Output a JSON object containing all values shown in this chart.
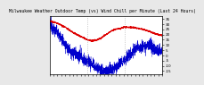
{
  "title": "Milwaukee Weather Outdoor Temp (vs) Wind Chill per Minute (Last 24 Hours)",
  "bg_color": "#e8e8e8",
  "plot_bg_color": "#ffffff",
  "text_color": "#000000",
  "blue_line_color": "#0000cc",
  "red_line_color": "#dd0000",
  "vline_color": "#999999",
  "n_points": 1440,
  "ylim": [
    -18,
    38
  ],
  "xlim": [
    0,
    1440
  ],
  "vlines": [
    480,
    960
  ],
  "outdoor_temp_segments": [
    [
      0,
      30
    ],
    [
      100,
      22
    ],
    [
      200,
      10
    ],
    [
      300,
      2
    ],
    [
      400,
      -2
    ],
    [
      480,
      -5
    ],
    [
      540,
      -8
    ],
    [
      600,
      -12
    ],
    [
      660,
      -14
    ],
    [
      720,
      -16
    ],
    [
      780,
      -14
    ],
    [
      840,
      -12
    ],
    [
      900,
      -8
    ],
    [
      960,
      -4
    ],
    [
      1020,
      0
    ],
    [
      1080,
      5
    ],
    [
      1140,
      8
    ],
    [
      1200,
      10
    ],
    [
      1260,
      9
    ],
    [
      1320,
      7
    ],
    [
      1380,
      5
    ],
    [
      1440,
      4
    ]
  ],
  "wind_chill_segments": [
    [
      0,
      33
    ],
    [
      100,
      31
    ],
    [
      200,
      27
    ],
    [
      300,
      22
    ],
    [
      400,
      18
    ],
    [
      480,
      15
    ],
    [
      540,
      14
    ],
    [
      600,
      15
    ],
    [
      660,
      17
    ],
    [
      720,
      20
    ],
    [
      780,
      23
    ],
    [
      840,
      25
    ],
    [
      900,
      26
    ],
    [
      960,
      27
    ],
    [
      1040,
      27
    ],
    [
      1140,
      26
    ],
    [
      1240,
      24
    ],
    [
      1340,
      21
    ],
    [
      1440,
      19
    ]
  ],
  "yticks": [
    35,
    30,
    25,
    20,
    15,
    10,
    5,
    0,
    -5,
    -10,
    -15
  ],
  "n_xticks": 30,
  "title_fontsize": 3.5,
  "tick_fontsize": 3.0
}
